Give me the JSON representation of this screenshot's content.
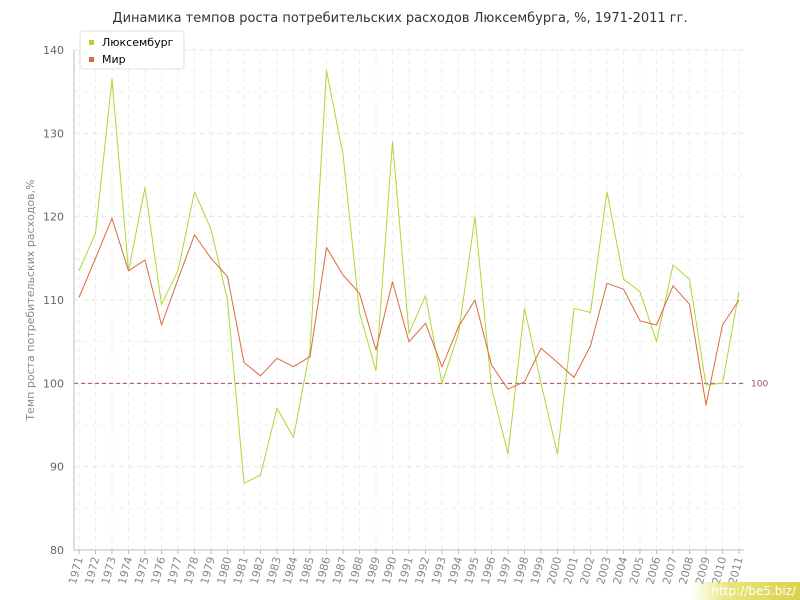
{
  "chart_data": {
    "type": "line",
    "title": "Динамика темпов роста потребительских расходов Люксембурга, %, 1971-2011 гг.",
    "ylabel": "Темп роста потребительских расходов,%",
    "ylim": [
      80,
      140
    ],
    "yticks": [
      "80",
      "90",
      "100",
      "110",
      "120",
      "130",
      "140"
    ],
    "categories": [
      "1971",
      "1972",
      "1973",
      "1974",
      "1975",
      "1976",
      "1977",
      "1978",
      "1979",
      "1980",
      "1981",
      "1982",
      "1983",
      "1984",
      "1985",
      "1986",
      "1987",
      "1988",
      "1989",
      "1990",
      "1991",
      "1992",
      "1993",
      "1994",
      "1995",
      "1996",
      "1997",
      "1998",
      "1999",
      "2000",
      "2001",
      "2002",
      "2003",
      "2004",
      "2005",
      "2006",
      "2007",
      "2008",
      "2009",
      "2010",
      "2011"
    ],
    "series": [
      {
        "name": "Люксембург",
        "color": "#b5d334",
        "values": [
          113.5,
          118,
          136.5,
          113.5,
          123.5,
          109.5,
          113.5,
          123,
          118.5,
          110,
          88,
          89,
          97,
          93.5,
          104,
          137.5,
          127.5,
          108.5,
          101.5,
          129,
          106,
          110.5,
          100,
          106,
          120,
          99.5,
          91.5,
          109,
          100,
          91.5,
          109,
          108.5,
          123,
          112.5,
          111,
          105,
          114.2,
          112.5,
          99.8,
          100,
          111
        ]
      },
      {
        "name": "Мир",
        "color": "#d96a3b",
        "values": [
          110.3,
          115,
          119.8,
          113.5,
          114.8,
          107,
          112.5,
          117.8,
          115,
          112.8,
          102.5,
          100.9,
          103,
          102,
          103.2,
          116.3,
          113,
          110.8,
          104,
          112.2,
          105,
          107.2,
          102,
          106.8,
          110,
          102.2,
          99.3,
          100.2,
          104.2,
          102.5,
          100.7,
          104.5,
          112,
          111.3,
          107.5,
          107,
          111.7,
          109.5,
          97.4,
          107,
          110
        ]
      }
    ],
    "reference_line": {
      "value": 100,
      "label": "100",
      "color": "#a0525f"
    },
    "grid": true,
    "legend_position": "top-left"
  },
  "watermark": "http://be5.biz/"
}
